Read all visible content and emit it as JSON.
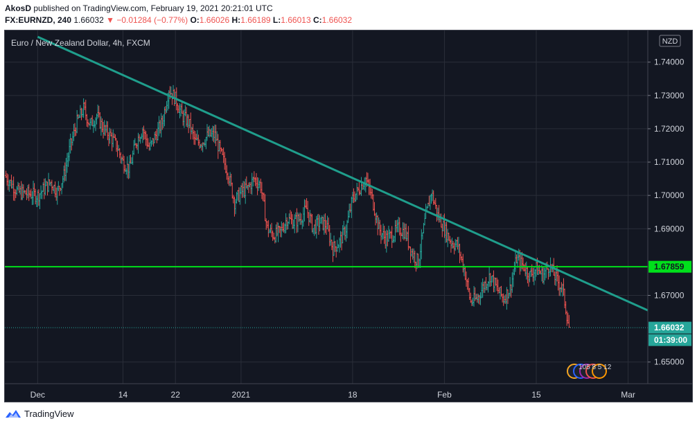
{
  "header": {
    "author": "AkosD",
    "published_text": "published on TradingView.com, February 19, 2021 20:21:01 UTC",
    "symbol_line": "FX:EURNZD, 240",
    "last_price": "1.66032",
    "change_arrow": "▼",
    "change": "−0.01284 (−0.77%)",
    "open_label": "O:",
    "open": "1.66026",
    "high_label": "H:",
    "high": "1.66189",
    "low_label": "L:",
    "low": "1.66013",
    "close_label": "C:",
    "close": "1.66032"
  },
  "footer": {
    "brand": "TradingView"
  },
  "colors": {
    "background": "#131722",
    "grid": "#2a2e39",
    "up": "#26a69a",
    "down": "#ef5350",
    "trendline": "#1f9e8c",
    "horizontal_line": "#00e01b",
    "axis_text": "#d1d4dc"
  },
  "chart_data": {
    "type": "ohlc-bar",
    "title": "Euro / New Zealand Dollar, 4h, FXCM",
    "currency_badge": "NZD",
    "y_ticks": [
      "1.74000",
      "1.73000",
      "1.72000",
      "1.71000",
      "1.70000",
      "1.69000",
      "1.67000",
      "1.65000"
    ],
    "y_tick_values": [
      1.74,
      1.73,
      1.72,
      1.71,
      1.7,
      1.69,
      1.67,
      1.65
    ],
    "ylim": [
      1.6435,
      1.7495
    ],
    "x_ticks": [
      "Dec",
      "14",
      "22",
      "2021",
      "18",
      "Feb",
      "15",
      "Mar"
    ],
    "x_tick_dates": [
      "2020-12-01",
      "2020-12-14",
      "2020-12-22",
      "2021-01-01",
      "2021-01-18",
      "2021-02-01",
      "2021-02-15",
      "2021-03-01"
    ],
    "x_range": [
      "2020-11-26",
      "2021-03-04"
    ],
    "horizontal_line": {
      "value": 1.67859,
      "label": "1.67859"
    },
    "trendline": {
      "start": {
        "date": "2020-12-01",
        "price": 1.7476
      },
      "end": {
        "date": "2021-03-04",
        "price": 1.6655
      }
    },
    "last_price": {
      "value": 1.66032,
      "label": "1.66032",
      "countdown": "01:39:00"
    },
    "indicators_badge": [
      "105",
      "8",
      "5",
      "12"
    ],
    "close_path": [
      [
        "2020-11-26",
        1.706
      ],
      [
        "2020-11-28",
        1.701
      ],
      [
        "2020-12-01",
        1.7
      ],
      [
        "2020-12-02",
        1.702
      ],
      [
        "2020-12-03",
        1.704
      ],
      [
        "2020-12-04",
        1.701
      ],
      [
        "2020-12-05",
        1.706
      ],
      [
        "2020-12-06",
        1.715
      ],
      [
        "2020-12-07",
        1.722
      ],
      [
        "2020-12-08",
        1.726
      ],
      [
        "2020-12-09",
        1.721
      ],
      [
        "2020-12-10",
        1.724
      ],
      [
        "2020-12-11",
        1.72
      ],
      [
        "2020-12-12",
        1.718
      ],
      [
        "2020-12-13",
        1.715
      ],
      [
        "2020-12-14",
        1.71
      ],
      [
        "2020-12-15",
        1.708
      ],
      [
        "2020-12-16",
        1.716
      ],
      [
        "2020-12-17",
        1.72
      ],
      [
        "2020-12-18",
        1.714
      ],
      [
        "2020-12-19",
        1.718
      ],
      [
        "2020-12-20",
        1.722
      ],
      [
        "2020-12-21",
        1.732
      ],
      [
        "2020-12-22",
        1.729
      ],
      [
        "2020-12-23",
        1.724
      ],
      [
        "2020-12-24",
        1.722
      ],
      [
        "2020-12-25",
        1.716
      ],
      [
        "2020-12-26",
        1.716
      ],
      [
        "2020-12-27",
        1.718
      ],
      [
        "2020-12-28",
        1.718
      ],
      [
        "2020-12-29",
        1.712
      ],
      [
        "2020-12-30",
        1.707
      ],
      [
        "2020-12-31",
        1.698
      ],
      [
        "2021-01-01",
        1.701
      ],
      [
        "2021-01-02",
        1.702
      ],
      [
        "2021-01-03",
        1.705
      ],
      [
        "2021-01-04",
        1.703
      ],
      [
        "2021-01-05",
        1.69
      ],
      [
        "2021-01-06",
        1.688
      ],
      [
        "2021-01-07",
        1.689
      ],
      [
        "2021-01-08",
        1.693
      ],
      [
        "2021-01-09",
        1.692
      ],
      [
        "2021-01-10",
        1.693
      ],
      [
        "2021-01-11",
        1.696
      ],
      [
        "2021-01-12",
        1.69
      ],
      [
        "2021-01-13",
        1.692
      ],
      [
        "2021-01-14",
        1.691
      ],
      [
        "2021-01-15",
        1.684
      ],
      [
        "2021-01-16",
        1.686
      ],
      [
        "2021-01-17",
        1.69
      ],
      [
        "2021-01-18",
        1.699
      ],
      [
        "2021-01-19",
        1.702
      ],
      [
        "2021-01-20",
        1.705
      ],
      [
        "2021-01-21",
        1.699
      ],
      [
        "2021-01-22",
        1.69
      ],
      [
        "2021-01-23",
        1.687
      ],
      [
        "2021-01-24",
        1.688
      ],
      [
        "2021-01-25",
        1.69
      ],
      [
        "2021-01-26",
        1.689
      ],
      [
        "2021-01-27",
        1.683
      ],
      [
        "2021-01-28",
        1.68
      ],
      [
        "2021-01-29",
        1.692
      ],
      [
        "2021-01-30",
        1.701
      ],
      [
        "2021-01-31",
        1.694
      ],
      [
        "2021-02-01",
        1.69
      ],
      [
        "2021-02-02",
        1.686
      ],
      [
        "2021-02-03",
        1.685
      ],
      [
        "2021-02-04",
        1.678
      ],
      [
        "2021-02-05",
        1.668
      ],
      [
        "2021-02-06",
        1.669
      ],
      [
        "2021-02-07",
        1.673
      ],
      [
        "2021-02-08",
        1.676
      ],
      [
        "2021-02-09",
        1.672
      ],
      [
        "2021-02-10",
        1.669
      ],
      [
        "2021-02-11",
        1.672
      ],
      [
        "2021-02-12",
        1.681
      ],
      [
        "2021-02-13",
        1.679
      ],
      [
        "2021-02-14",
        1.676
      ],
      [
        "2021-02-15",
        1.678
      ],
      [
        "2021-02-16",
        1.676
      ],
      [
        "2021-02-17",
        1.679
      ],
      [
        "2021-02-18",
        1.675
      ],
      [
        "2021-02-19",
        1.672
      ],
      [
        "2021-02-20",
        1.6603
      ]
    ]
  }
}
